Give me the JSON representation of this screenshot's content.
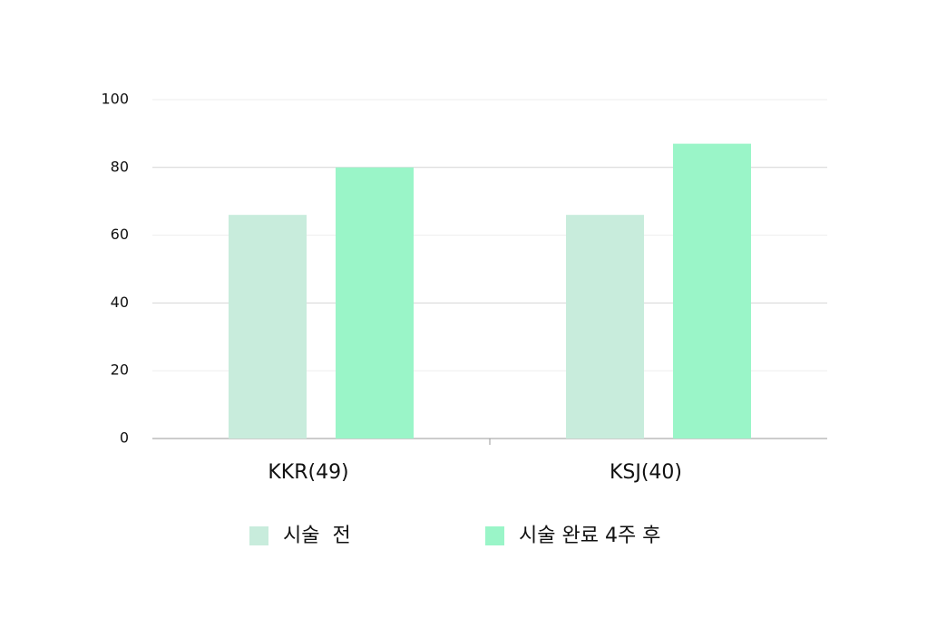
{
  "chart_data": {
    "type": "bar",
    "categories": [
      "KKR(49)",
      "KSJ(40)"
    ],
    "series": [
      {
        "name": "시술  전",
        "color": "#c8ecdc",
        "values": [
          66,
          66
        ]
      },
      {
        "name": "시술 완료 4주 후",
        "color": "#9af5c8",
        "values": [
          80,
          87
        ]
      }
    ],
    "ylim": [
      0,
      100
    ],
    "yticks": [
      0,
      20,
      40,
      60,
      80,
      100
    ],
    "grid": true,
    "legend": "bottom"
  }
}
